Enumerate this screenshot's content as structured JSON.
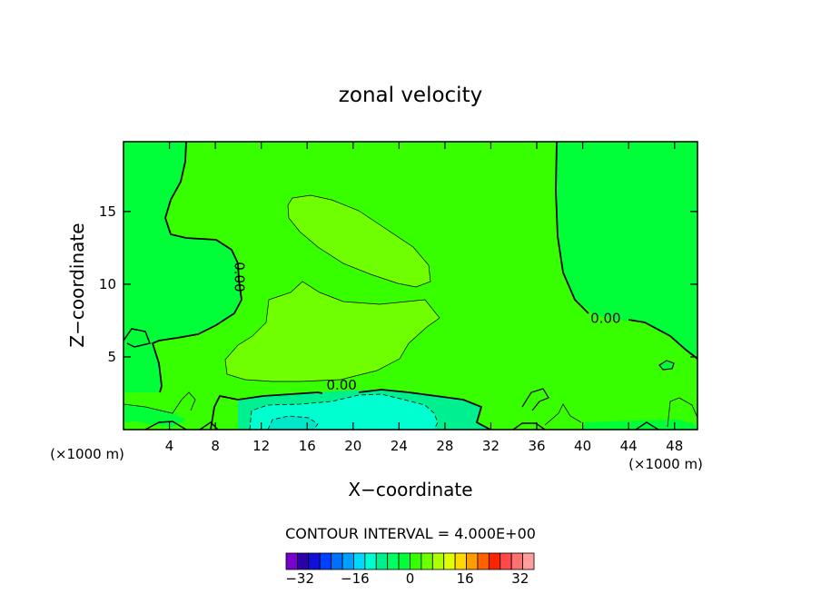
{
  "chart_data": {
    "type": "contour",
    "title": "zonal velocity",
    "xlabel": "X−coordinate",
    "ylabel": "Z−coordinate",
    "x_unit_left": "(×1000 m)",
    "x_unit_right": "(×1000 m)",
    "xlim": [
      0,
      50
    ],
    "ylim": [
      0,
      19.8
    ],
    "x_ticks": [
      4,
      8,
      12,
      16,
      20,
      24,
      28,
      32,
      36,
      40,
      44,
      48
    ],
    "y_ticks": [
      5,
      10,
      15
    ],
    "contour_labels": [
      {
        "text": "0.00",
        "x": 10.0,
        "y": 10.5,
        "rotation": 90
      },
      {
        "text": "0.00",
        "x": 19.0,
        "y": 3.0,
        "rotation": 0
      },
      {
        "text": "0.00",
        "x": 42.0,
        "y": 7.6,
        "rotation": 0
      }
    ],
    "contour_interval_text": "CONTOUR INTERVAL = 4.000E+00",
    "contour_interval": 4.0,
    "colorbar": {
      "min": -36,
      "max": 36,
      "tick_values": [
        -32,
        -16,
        0,
        16,
        32
      ],
      "tick_labels": [
        "−32",
        "−16",
        "0",
        "16",
        "32"
      ],
      "colors": [
        "#7a00cc",
        "#2b00a8",
        "#1010d8",
        "#0040ff",
        "#0070ff",
        "#00a0ff",
        "#00d8ff",
        "#00ffd0",
        "#00f090",
        "#00ff60",
        "#00ff38",
        "#38ff00",
        "#70ff00",
        "#b0ff00",
        "#e0ff00",
        "#ffd800",
        "#ff9c00",
        "#ff6000",
        "#ff2400",
        "#ff4848",
        "#ff7070",
        "#ff9c9c"
      ]
    },
    "colors": {
      "level_0_to_4": "#00ff38",
      "level_4_to_8": "#38ff00",
      "level_8_to_12": "#70ff00",
      "level_minus4_to_0": "#00f090",
      "level_minus8_to_minus4": "#00ffd0",
      "level_minus12_to_minus8": "#00e6c8"
    }
  }
}
